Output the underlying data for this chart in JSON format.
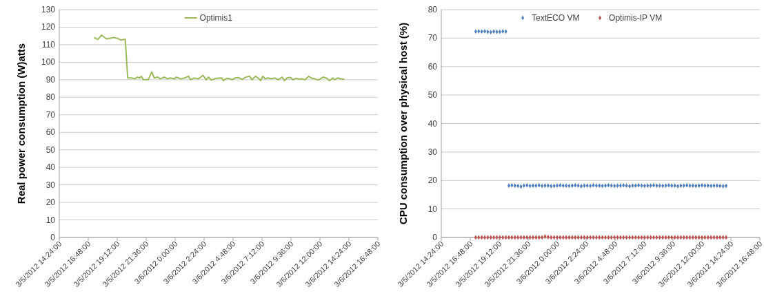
{
  "chart_data": [
    {
      "type": "line",
      "ylabel": "Real power consumption (W)atts",
      "legend": "top",
      "grid": "y",
      "marker": "none",
      "line_style": "solid",
      "ylim": [
        0,
        130
      ],
      "yticks": [
        0,
        10,
        20,
        30,
        40,
        50,
        60,
        70,
        80,
        90,
        100,
        110,
        120,
        130
      ],
      "xlim": [
        "2012-03-05T14:24",
        "2012-03-06T16:48"
      ],
      "xticks": [
        {
          "value": "2012-03-05T14:24",
          "label": "3/5/2012 14:24:00"
        },
        {
          "value": "2012-03-05T16:48",
          "label": "3/5/2012 16:48:00"
        },
        {
          "value": "2012-03-05T19:12",
          "label": "3/5/2012 19:12:00"
        },
        {
          "value": "2012-03-05T21:36",
          "label": "3/5/2012 21:36:00"
        },
        {
          "value": "2012-03-06T00:00",
          "label": "3/6/2012 0:00:00"
        },
        {
          "value": "2012-03-06T02:24",
          "label": "3/6/2012 2:24:00"
        },
        {
          "value": "2012-03-06T04:48",
          "label": "3/6/2012 4:48:00"
        },
        {
          "value": "2012-03-06T07:12",
          "label": "3/6/2012 7:12:00"
        },
        {
          "value": "2012-03-06T09:36",
          "label": "3/6/2012 9:36:00"
        },
        {
          "value": "2012-03-06T12:00",
          "label": "3/6/2012 12:00:00"
        },
        {
          "value": "2012-03-06T14:24",
          "label": "3/6/2012 14:24:00"
        },
        {
          "value": "2012-03-06T16:48",
          "label": "3/6/2012 16:48:00"
        }
      ],
      "x": [
        "2012-03-05T17:19",
        "2012-03-05T17:36",
        "2012-03-05T17:54",
        "2012-03-05T18:19",
        "2012-03-05T18:34",
        "2012-03-05T18:55",
        "2012-03-05T19:16",
        "2012-03-05T19:31",
        "2012-03-05T19:52",
        "2012-03-05T20:04",
        "2012-03-05T20:22",
        "2012-03-05T20:40",
        "2012-03-05T20:52",
        "2012-03-05T21:04",
        "2012-03-05T21:12",
        "2012-03-05T21:22",
        "2012-03-05T21:46",
        "2012-03-05T22:04",
        "2012-03-05T22:16",
        "2012-03-05T22:34",
        "2012-03-05T22:46",
        "2012-03-05T23:07",
        "2012-03-05T23:22",
        "2012-03-05T23:34",
        "2012-03-05T23:58",
        "2012-03-06T00:05",
        "2012-03-06T00:28",
        "2012-03-06T00:48",
        "2012-03-06T01:07",
        "2012-03-06T01:16",
        "2012-03-06T01:34",
        "2012-03-06T01:55",
        "2012-03-06T02:19",
        "2012-03-06T02:34",
        "2012-03-06T02:46",
        "2012-03-06T03:00",
        "2012-03-06T03:22",
        "2012-03-06T03:52",
        "2012-03-06T04:00",
        "2012-03-06T04:16",
        "2012-03-06T04:34",
        "2012-03-06T04:43",
        "2012-03-06T04:58",
        "2012-03-06T05:16",
        "2012-03-06T05:34",
        "2012-03-06T05:52",
        "2012-03-06T06:10",
        "2012-03-06T06:22",
        "2012-03-06T06:40",
        "2012-03-06T06:58",
        "2012-03-06T07:05",
        "2012-03-06T07:16",
        "2012-03-06T07:28",
        "2012-03-06T07:40",
        "2012-03-06T07:58",
        "2012-03-06T08:16",
        "2012-03-06T08:34",
        "2012-03-06T08:52",
        "2012-03-06T09:04",
        "2012-03-06T09:16",
        "2012-03-06T09:34",
        "2012-03-06T09:46",
        "2012-03-06T10:00",
        "2012-03-06T10:16",
        "2012-03-06T10:31",
        "2012-03-06T10:46",
        "2012-03-06T11:04",
        "2012-03-06T11:16",
        "2012-03-06T11:34",
        "2012-03-06T11:52",
        "2012-03-06T12:16",
        "2012-03-06T12:34",
        "2012-03-06T12:48",
        "2012-03-06T13:04",
        "2012-03-06T13:12",
        "2012-03-06T13:28",
        "2012-03-06T13:43",
        "2012-03-06T13:58"
      ],
      "series": [
        {
          "name": "Optimis1",
          "color": "#9bbb59",
          "values": [
            114,
            113,
            115.5,
            113.3,
            113.6,
            114.1,
            113.5,
            112.6,
            113.2,
            91,
            91,
            90.5,
            91.5,
            91,
            92,
            90,
            90,
            94.5,
            91,
            91.5,
            90.5,
            91.5,
            90.5,
            91,
            90.5,
            91.5,
            90.5,
            91,
            92,
            90,
            91,
            90.5,
            92.5,
            90,
            91.5,
            89.8,
            90.8,
            91,
            89.5,
            90.8,
            90.5,
            90,
            91,
            91.2,
            90.2,
            91.5,
            92,
            90,
            92,
            90.5,
            89.5,
            92,
            90.5,
            91,
            90.6,
            91,
            90,
            91.5,
            89.5,
            91,
            91.3,
            90,
            90.8,
            90.3,
            90.5,
            90,
            92,
            91,
            90.5,
            89.8,
            91.5,
            90.8,
            89.5,
            91,
            90,
            91,
            90.5,
            90.3
          ]
        }
      ]
    },
    {
      "type": "scatter",
      "ylabel": "CPU consumption over physical host (%)",
      "legend": "top",
      "grid": "y",
      "marker": "diamond",
      "ylim": [
        0,
        80
      ],
      "yticks": [
        0,
        10,
        20,
        30,
        40,
        50,
        60,
        70,
        80
      ],
      "xlim": [
        "2012-03-05T14:24",
        "2012-03-06T16:48"
      ],
      "xticks": [
        {
          "value": "2012-03-05T14:24",
          "label": "3/5/2012 14:24:00"
        },
        {
          "value": "2012-03-05T16:48",
          "label": "3/5/2012 16:48:00"
        },
        {
          "value": "2012-03-05T19:12",
          "label": "3/5/2012 19:12:00"
        },
        {
          "value": "2012-03-05T21:36",
          "label": "3/5/2012 21:36:00"
        },
        {
          "value": "2012-03-06T00:00",
          "label": "3/6/2012 0:00:00"
        },
        {
          "value": "2012-03-06T02:24",
          "label": "3/6/2012 2:24:00"
        },
        {
          "value": "2012-03-06T04:48",
          "label": "3/6/2012 4:48:00"
        },
        {
          "value": "2012-03-06T07:12",
          "label": "3/6/2012 7:12:00"
        },
        {
          "value": "2012-03-06T09:36",
          "label": "3/6/2012 9:36:00"
        },
        {
          "value": "2012-03-06T12:00",
          "label": "3/6/2012 12:00:00"
        },
        {
          "value": "2012-03-06T14:24",
          "label": "3/6/2012 14:24:00"
        },
        {
          "value": "2012-03-06T16:48",
          "label": "3/6/2012 16:48:00"
        }
      ],
      "x": [
        "2012-03-05T17:15",
        "2012-03-05T17:30",
        "2012-03-05T17:45",
        "2012-03-05T18:00",
        "2012-03-05T18:15",
        "2012-03-05T18:30",
        "2012-03-05T18:45",
        "2012-03-05T19:00",
        "2012-03-05T19:15",
        "2012-03-05T19:30",
        "2012-03-05T19:45",
        "2012-03-05T20:00",
        "2012-03-05T20:15",
        "2012-03-05T20:30",
        "2012-03-05T20:45",
        "2012-03-05T21:00",
        "2012-03-05T21:15",
        "2012-03-05T21:30",
        "2012-03-05T21:45",
        "2012-03-05T22:00",
        "2012-03-05T22:15",
        "2012-03-05T22:30",
        "2012-03-05T22:45",
        "2012-03-05T23:00",
        "2012-03-05T23:15",
        "2012-03-05T23:30",
        "2012-03-05T23:45",
        "2012-03-06T00:00",
        "2012-03-06T00:15",
        "2012-03-06T00:30",
        "2012-03-06T00:45",
        "2012-03-06T01:00",
        "2012-03-06T01:15",
        "2012-03-06T01:30",
        "2012-03-06T01:45",
        "2012-03-06T02:00",
        "2012-03-06T02:15",
        "2012-03-06T02:30",
        "2012-03-06T02:45",
        "2012-03-06T03:00",
        "2012-03-06T03:15",
        "2012-03-06T03:30",
        "2012-03-06T03:45",
        "2012-03-06T04:00",
        "2012-03-06T04:15",
        "2012-03-06T04:30",
        "2012-03-06T04:45",
        "2012-03-06T05:00",
        "2012-03-06T05:15",
        "2012-03-06T05:30",
        "2012-03-06T05:45",
        "2012-03-06T06:00",
        "2012-03-06T06:15",
        "2012-03-06T06:30",
        "2012-03-06T06:45",
        "2012-03-06T07:00",
        "2012-03-06T07:15",
        "2012-03-06T07:30",
        "2012-03-06T07:45",
        "2012-03-06T08:00",
        "2012-03-06T08:15",
        "2012-03-06T08:30",
        "2012-03-06T08:45",
        "2012-03-06T09:00",
        "2012-03-06T09:15",
        "2012-03-06T09:30",
        "2012-03-06T09:45",
        "2012-03-06T10:00",
        "2012-03-06T10:15",
        "2012-03-06T10:30",
        "2012-03-06T10:45",
        "2012-03-06T11:00",
        "2012-03-06T11:15",
        "2012-03-06T11:30",
        "2012-03-06T11:45",
        "2012-03-06T12:00",
        "2012-03-06T12:15",
        "2012-03-06T12:30",
        "2012-03-06T12:45",
        "2012-03-06T13:00",
        "2012-03-06T13:15",
        "2012-03-06T13:30",
        "2012-03-06T13:45",
        "2012-03-06T14:00"
      ],
      "series": [
        {
          "name": "TextECO VM",
          "color": "#4f81bd",
          "values": [
            72.3,
            72.4,
            72.3,
            72.4,
            72.2,
            72.1,
            72.3,
            72.2,
            72.2,
            72.4,
            72.3,
            18.2,
            18.3,
            18.2,
            18.1,
            17.9,
            18.2,
            18.3,
            18.1,
            18.2,
            18.2,
            18.3,
            18.1,
            18.2,
            18.2,
            18,
            18.1,
            18.2,
            18.3,
            18.2,
            18.2,
            18.1,
            18.2,
            18.3,
            18.2,
            18,
            18.2,
            18.2,
            18.1,
            18.3,
            18.2,
            18.2,
            18.1,
            18.2,
            18.3,
            18.2,
            18.1,
            18.2,
            18.2,
            18.3,
            18.2,
            18,
            18.2,
            18.2,
            18.3,
            18.2,
            18.1,
            18.2,
            18.2,
            18.3,
            18.2,
            18.2,
            18.1,
            18.2,
            18.3,
            18.2,
            18.2,
            18,
            18.2,
            18.2,
            18.3,
            18.2,
            18.2,
            18.1,
            18.2,
            18.3,
            18.2,
            18.2,
            18.1,
            18.2,
            18.2,
            18.1,
            18,
            18.1
          ]
        },
        {
          "name": "Optimis-IP VM",
          "color": "#c0504d",
          "values": [
            0,
            0,
            0,
            0,
            0,
            0,
            0,
            0,
            0,
            0,
            0,
            0,
            0,
            0,
            0,
            0,
            0,
            0,
            0,
            0,
            0,
            0,
            0,
            0.3,
            0.1,
            0,
            0,
            0,
            0,
            0,
            0,
            0,
            0,
            0,
            0,
            0,
            0,
            0,
            0,
            0,
            0,
            0,
            0,
            0,
            0,
            0,
            0,
            0,
            0,
            0,
            0,
            0,
            0,
            0,
            0,
            0,
            0,
            0,
            0,
            0,
            0,
            0,
            0,
            0,
            0,
            0,
            0,
            0,
            0,
            0,
            0,
            0,
            0,
            0,
            0,
            0,
            0,
            0,
            0,
            0,
            0,
            0,
            0,
            0
          ]
        }
      ]
    }
  ]
}
